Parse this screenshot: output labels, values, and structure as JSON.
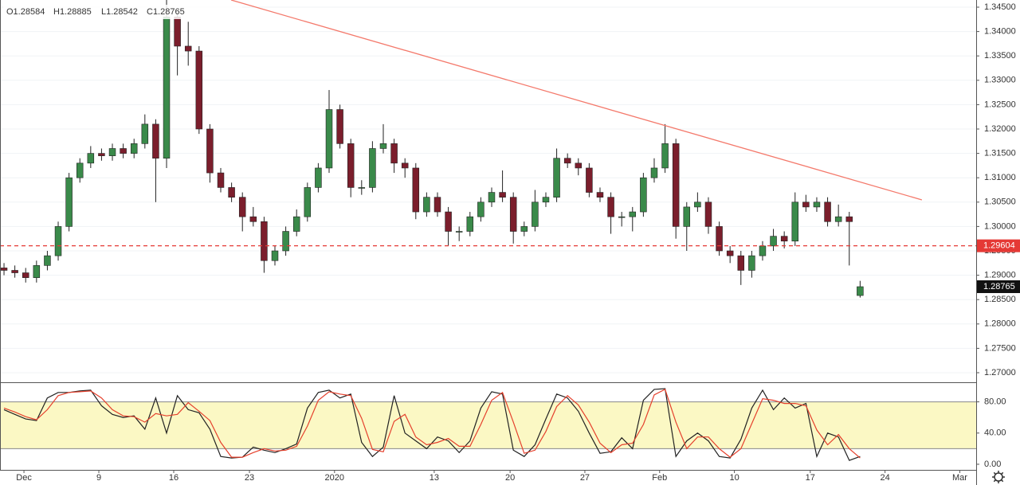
{
  "header": {
    "open": "O1.28584",
    "high": "H1.28885",
    "low": "L1.28542",
    "close": "C1.28765"
  },
  "chart_data": [
    {
      "type": "candlestick",
      "xlim": [
        -0.37,
        89.71
      ],
      "ylim": [
        1.26804,
        1.34647
      ],
      "up_color": "#3a8a4a",
      "down_color": "#7b1e2c",
      "open": [
        1.2915,
        1.291,
        1.2905,
        1.2895,
        1.292,
        1.294,
        1.3,
        1.31,
        1.313,
        1.315,
        1.3145,
        1.316,
        1.315,
        1.317,
        1.321,
        1.314,
        1.343,
        1.337,
        1.336,
        1.32,
        1.311,
        1.308,
        1.306,
        1.302,
        1.301,
        1.293,
        1.295,
        1.299,
        1.302,
        1.308,
        1.312,
        1.324,
        1.317,
        1.308,
        1.308,
        1.316,
        1.317,
        1.313,
        1.312,
        1.303,
        1.306,
        1.303,
        1.299,
        1.299,
        1.302,
        1.305,
        1.307,
        1.306,
        1.299,
        1.3,
        1.305,
        1.306,
        1.314,
        1.313,
        1.312,
        1.307,
        1.306,
        1.302,
        1.302,
        1.303,
        1.31,
        1.312,
        1.317,
        1.3,
        1.304,
        1.305,
        1.3,
        1.295,
        1.294,
        1.291,
        1.294,
        1.296,
        1.298,
        1.297,
        1.305,
        1.304,
        1.305,
        1.301,
        1.302,
        1.28584
      ],
      "high": [
        1.2925,
        1.292,
        1.2915,
        1.293,
        1.295,
        1.301,
        1.311,
        1.314,
        1.3165,
        1.316,
        1.317,
        1.317,
        1.318,
        1.323,
        1.322,
        1.3465,
        1.344,
        1.342,
        1.337,
        1.321,
        1.312,
        1.309,
        1.307,
        1.304,
        1.302,
        1.296,
        1.3,
        1.3035,
        1.309,
        1.313,
        1.328,
        1.325,
        1.318,
        1.3095,
        1.3175,
        1.321,
        1.318,
        1.314,
        1.313,
        1.307,
        1.307,
        1.304,
        1.3,
        1.303,
        1.306,
        1.308,
        1.3115,
        1.307,
        1.301,
        1.3075,
        1.307,
        1.316,
        1.315,
        1.314,
        1.313,
        1.308,
        1.307,
        1.303,
        1.304,
        1.311,
        1.314,
        1.321,
        1.318,
        1.305,
        1.307,
        1.306,
        1.301,
        1.296,
        1.295,
        1.295,
        1.297,
        1.2995,
        1.299,
        1.307,
        1.3065,
        1.306,
        1.306,
        1.3045,
        1.303,
        1.28885
      ],
      "low": [
        1.29,
        1.2895,
        1.2885,
        1.2885,
        1.291,
        1.293,
        1.299,
        1.309,
        1.312,
        1.3135,
        1.3135,
        1.314,
        1.314,
        1.316,
        1.305,
        1.312,
        1.331,
        1.333,
        1.319,
        1.309,
        1.307,
        1.305,
        1.299,
        1.3,
        1.2905,
        1.292,
        1.294,
        1.298,
        1.301,
        1.307,
        1.311,
        1.316,
        1.306,
        1.3065,
        1.307,
        1.315,
        1.311,
        1.31,
        1.3015,
        1.302,
        1.302,
        1.296,
        1.297,
        1.298,
        1.301,
        1.304,
        1.305,
        1.2965,
        1.298,
        1.299,
        1.304,
        1.305,
        1.312,
        1.3105,
        1.306,
        1.305,
        1.2985,
        1.3,
        1.299,
        1.302,
        1.309,
        1.311,
        1.2975,
        1.295,
        1.303,
        1.2985,
        1.294,
        1.2925,
        1.288,
        1.2895,
        1.293,
        1.295,
        1.2955,
        1.296,
        1.303,
        1.303,
        1.3,
        1.3,
        1.292,
        1.28542
      ],
      "close": [
        1.291,
        1.2905,
        1.2895,
        1.292,
        1.294,
        1.3,
        1.31,
        1.313,
        1.315,
        1.3145,
        1.316,
        1.315,
        1.317,
        1.321,
        1.314,
        1.343,
        1.337,
        1.336,
        1.32,
        1.311,
        1.308,
        1.306,
        1.302,
        1.301,
        1.293,
        1.295,
        1.299,
        1.302,
        1.308,
        1.312,
        1.324,
        1.317,
        1.308,
        1.308,
        1.316,
        1.317,
        1.313,
        1.312,
        1.303,
        1.306,
        1.303,
        1.299,
        1.299,
        1.302,
        1.305,
        1.307,
        1.306,
        1.299,
        1.3,
        1.305,
        1.306,
        1.314,
        1.313,
        1.312,
        1.307,
        1.306,
        1.302,
        1.302,
        1.303,
        1.31,
        1.312,
        1.317,
        1.3,
        1.304,
        1.305,
        1.3,
        1.295,
        1.294,
        1.291,
        1.294,
        1.296,
        1.298,
        1.297,
        1.305,
        1.304,
        1.305,
        1.301,
        1.302,
        1.301,
        1.28765
      ],
      "yticks": [
        {
          "value": 1.345,
          "label": "1.34500"
        },
        {
          "value": 1.34,
          "label": "1.34000"
        },
        {
          "value": 1.335,
          "label": "1.33500"
        },
        {
          "value": 1.33,
          "label": "1.33000"
        },
        {
          "value": 1.325,
          "label": "1.32500"
        },
        {
          "value": 1.32,
          "label": "1.32000"
        },
        {
          "value": 1.315,
          "label": "1.31500"
        },
        {
          "value": 1.31,
          "label": "1.31000"
        },
        {
          "value": 1.305,
          "label": "1.30500"
        },
        {
          "value": 1.3,
          "label": "1.30000"
        },
        {
          "value": 1.295,
          "label": "1.29500"
        },
        {
          "value": 1.29,
          "label": "1.29000"
        },
        {
          "value": 1.285,
          "label": "1.28500"
        },
        {
          "value": 1.28,
          "label": "1.28000"
        },
        {
          "value": 1.275,
          "label": "1.27500"
        },
        {
          "value": 1.27,
          "label": "1.27000"
        }
      ],
      "xticks": [
        {
          "value": 1.84,
          "label": "Dec"
        },
        {
          "value": 8.75,
          "label": "9"
        },
        {
          "value": 15.66,
          "label": "16"
        },
        {
          "value": 22.65,
          "label": "23"
        },
        {
          "value": 30.5,
          "label": "2020"
        },
        {
          "value": 39.7,
          "label": "13"
        },
        {
          "value": 46.7,
          "label": "20"
        },
        {
          "value": 53.6,
          "label": "27"
        },
        {
          "value": 60.5,
          "label": "Feb"
        },
        {
          "value": 67.4,
          "label": "10"
        },
        {
          "value": 74.4,
          "label": "17"
        },
        {
          "value": 81.3,
          "label": "24"
        },
        {
          "value": 88.2,
          "label": "Mar"
        }
      ],
      "hline": {
        "value": 1.29604,
        "label": "1.29604",
        "color": "#e53935"
      },
      "last_price": {
        "value": 1.28765,
        "label": "1.28765",
        "color": "#111111"
      },
      "trendline": {
        "x": [
          20.96,
          84.7
        ],
        "y": [
          1.34647,
          1.30546
        ],
        "color": "#f4796b"
      }
    },
    {
      "type": "line",
      "xlim": [
        -0.37,
        89.71
      ],
      "ylim": [
        -7.2,
        104.1
      ],
      "yticks": [
        {
          "value": 0,
          "label": "0.00"
        },
        {
          "value": 40,
          "label": "40.00"
        },
        {
          "value": 80,
          "label": "80.00"
        }
      ],
      "band": [
        20,
        80
      ],
      "band_color": "#fbf8c4",
      "series": [
        {
          "color": "#222222",
          "values": [
            70,
            64,
            58,
            56,
            85,
            92,
            92,
            94,
            95,
            75,
            64,
            60,
            62,
            45,
            85,
            40,
            88,
            70,
            66,
            45,
            10,
            8,
            9,
            22,
            18,
            15,
            20,
            26,
            72,
            92,
            95,
            85,
            90,
            28,
            10,
            22,
            88,
            40,
            30,
            20,
            35,
            30,
            15,
            30,
            72,
            93,
            90,
            18,
            10,
            25,
            58,
            90,
            85,
            68,
            40,
            14,
            16,
            34,
            20,
            82,
            96,
            97,
            10,
            30,
            40,
            30,
            10,
            8,
            32,
            72,
            95,
            70,
            85,
            72,
            78,
            10,
            40,
            35,
            5,
            10
          ]
        },
        {
          "color": "#e5412d",
          "values": [
            72,
            67,
            61,
            57,
            70,
            88,
            92,
            93,
            94,
            85,
            70,
            62,
            61,
            54,
            65,
            62,
            64,
            79,
            68,
            56,
            28,
            9,
            9,
            15,
            20,
            17,
            18,
            23,
            49,
            82,
            93,
            90,
            88,
            59,
            19,
            16,
            55,
            64,
            35,
            25,
            28,
            33,
            23,
            23,
            51,
            82,
            92,
            54,
            14,
            18,
            42,
            74,
            88,
            76,
            54,
            27,
            15,
            25,
            27,
            51,
            89,
            96,
            54,
            20,
            35,
            35,
            20,
            9,
            20,
            52,
            84,
            82,
            78,
            78,
            75,
            44,
            25,
            38,
            20,
            8
          ]
        }
      ]
    }
  ]
}
